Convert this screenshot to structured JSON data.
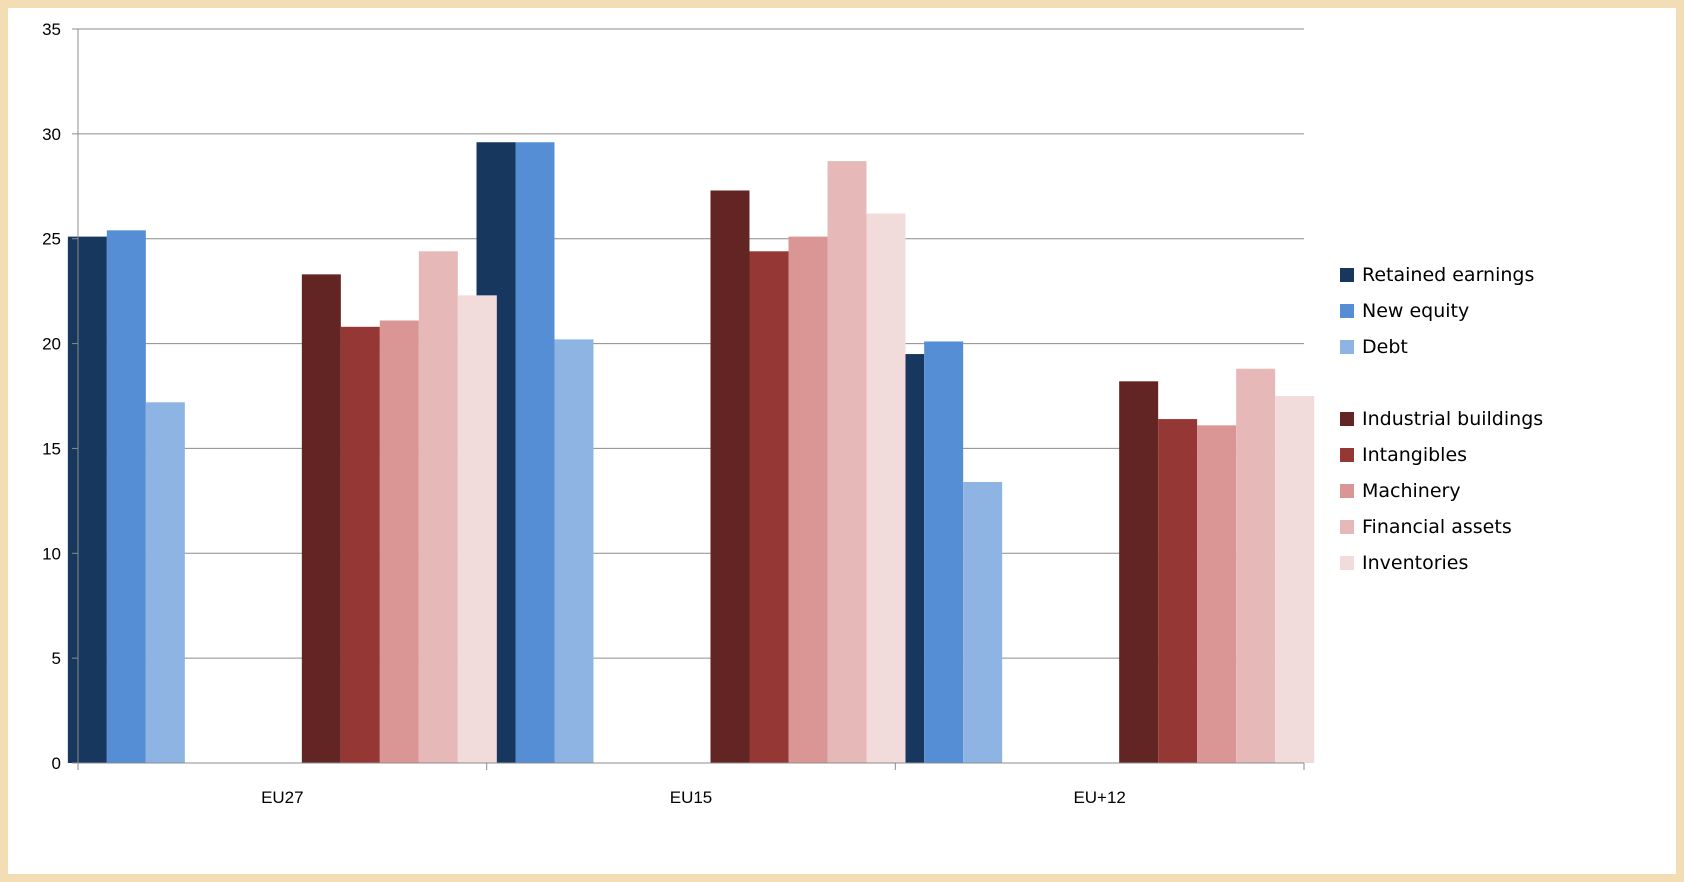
{
  "chart_data": {
    "type": "bar",
    "title": "",
    "xlabel": "",
    "ylabel": "",
    "ylim": [
      0,
      35
    ],
    "yticks": [
      0,
      5,
      10,
      15,
      20,
      25,
      30,
      35
    ],
    "grid": true,
    "legend_position": "right",
    "categories": [
      "EU27",
      "EU15",
      "EU+12"
    ],
    "series_groups": [
      [
        "Retained earnings",
        "New equity",
        "Debt"
      ],
      [
        "Industrial buildings",
        "Intangibles",
        "Machinery",
        "Financial assets",
        "Inventories"
      ]
    ],
    "series": [
      {
        "name": "Retained earnings",
        "color": "#17375e",
        "values": [
          25.1,
          29.6,
          19.5
        ]
      },
      {
        "name": "New equity",
        "color": "#558ed5",
        "values": [
          25.4,
          29.6,
          20.1
        ]
      },
      {
        "name": "Debt",
        "color": "#8eb4e3",
        "values": [
          17.2,
          20.2,
          13.4
        ]
      },
      {
        "name": "Industrial buildings",
        "color": "#632523",
        "values": [
          23.3,
          27.3,
          18.2
        ]
      },
      {
        "name": "Intangibles",
        "color": "#953735",
        "values": [
          20.8,
          24.4,
          16.4
        ]
      },
      {
        "name": "Machinery",
        "color": "#d99694",
        "values": [
          21.1,
          25.1,
          16.1
        ]
      },
      {
        "name": "Financial assets",
        "color": "#e6b9b8",
        "values": [
          24.4,
          28.7,
          18.8
        ]
      },
      {
        "name": "Inventories",
        "color": "#f2dcdb",
        "values": [
          22.3,
          26.2,
          17.5
        ]
      }
    ]
  }
}
